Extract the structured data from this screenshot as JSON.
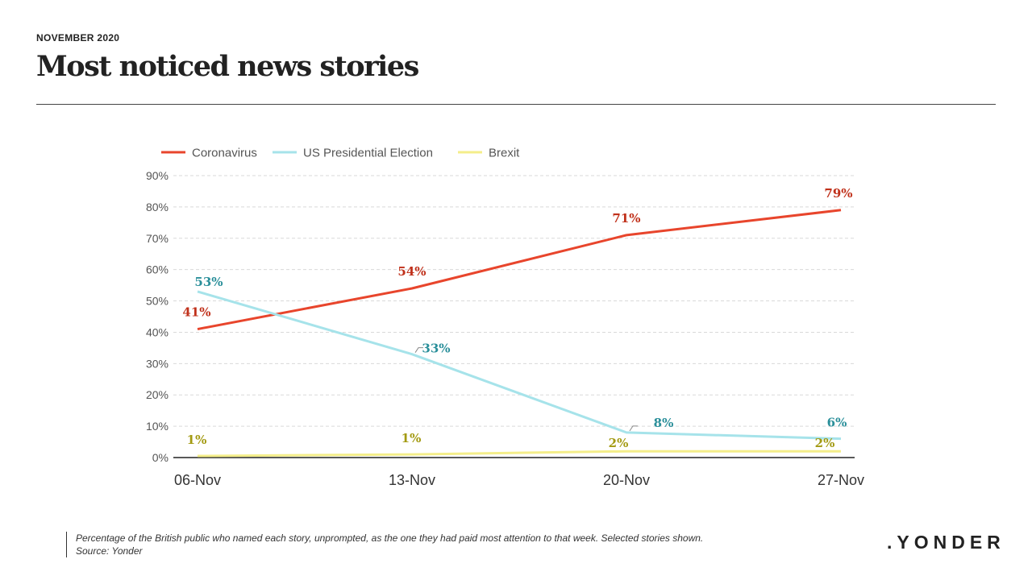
{
  "header": {
    "date": "NOVEMBER 2020",
    "title": "Most noticed news stories"
  },
  "footnote": {
    "line1": "Percentage of the British public who named each story, unprompted, as the one they had paid most attention to that week. Selected stories shown.",
    "line2": "Source: Yonder"
  },
  "brand": {
    "logo": ".YONDER"
  },
  "chart_data": {
    "type": "line",
    "title": "",
    "xlabel": "",
    "ylabel": "",
    "x": [
      "06-Nov",
      "13-Nov",
      "20-Nov",
      "27-Nov"
    ],
    "ylim": [
      0,
      90
    ],
    "yticks": [
      0,
      10,
      20,
      30,
      40,
      50,
      60,
      70,
      80,
      90
    ],
    "ytick_format": "percent",
    "grid": true,
    "legend_position": "top-left",
    "series": [
      {
        "name": "Coronavirus",
        "values": [
          41,
          54,
          71,
          79
        ],
        "labels": [
          "41%",
          "54%",
          "71%",
          "79%"
        ],
        "color": "#e8452c",
        "label_color": "#c0301a"
      },
      {
        "name": "US Presidential Election",
        "values": [
          53,
          33,
          8,
          6
        ],
        "labels": [
          "53%",
          "33%",
          "8%",
          "6%"
        ],
        "color": "#a6e3ea",
        "label_color": "#2a8f9a"
      },
      {
        "name": "Brexit",
        "values": [
          0.5,
          1,
          2,
          2
        ],
        "labels": [
          "1%",
          "1%",
          "2%",
          "2%"
        ],
        "color": "#f4ee8a",
        "label_color": "#a39a12"
      }
    ]
  }
}
